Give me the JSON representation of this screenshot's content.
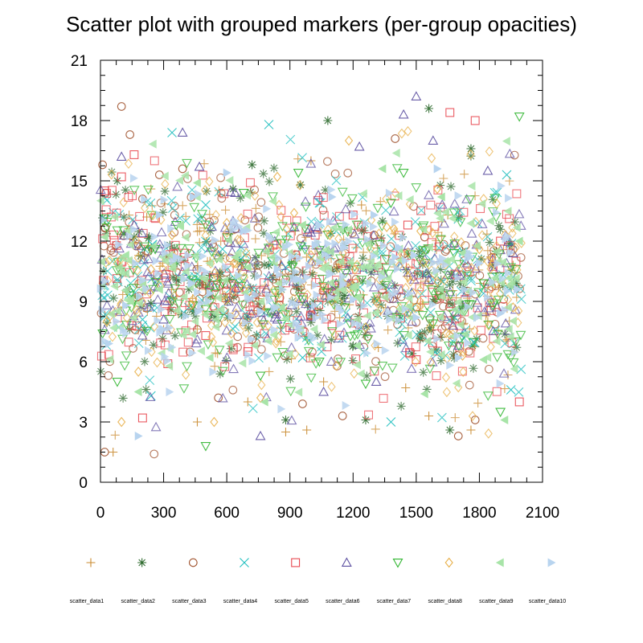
{
  "chart_data": {
    "type": "scatter",
    "title": "Scatter plot with grouped markers (per-group opacities)",
    "xlabel": "",
    "ylabel": "",
    "xlim": [
      0,
      2100
    ],
    "ylim": [
      0,
      21
    ],
    "xticks": [
      0,
      300,
      600,
      900,
      1200,
      1500,
      1800,
      2100
    ],
    "yticks": [
      0,
      3,
      6,
      9,
      12,
      15,
      18,
      21
    ],
    "grid": false,
    "legend_position": "bottom",
    "x_range_of_points": [
      0,
      2000
    ],
    "series": [
      {
        "name": "scatter_data1",
        "marker": "plus",
        "color": "#c98a2e",
        "points": [
          [
            60,
            1.5
          ],
          [
            140,
            12.1
          ],
          [
            220,
            13.2
          ],
          [
            300,
            7.6
          ],
          [
            460,
            3.0
          ],
          [
            520,
            11.0
          ],
          [
            700,
            4.0
          ],
          [
            780,
            8.6
          ],
          [
            880,
            2.5
          ],
          [
            980,
            2.6
          ],
          [
            1000,
            16.0
          ],
          [
            1060,
            5.0
          ],
          [
            1240,
            13.8
          ],
          [
            1320,
            6.7
          ],
          [
            1450,
            4.7
          ],
          [
            1560,
            3.3
          ],
          [
            1650,
            13.3
          ],
          [
            1760,
            2.6
          ],
          [
            1840,
            8.0
          ],
          [
            1960,
            10.8
          ]
        ]
      },
      {
        "name": "scatter_data2",
        "marker": "asterisk",
        "color": "#2e6a2e",
        "points": [
          [
            80,
            15.0
          ],
          [
            160,
            12.2
          ],
          [
            240,
            8.9
          ],
          [
            330,
            11.8
          ],
          [
            420,
            9.6
          ],
          [
            520,
            10.3
          ],
          [
            630,
            14.6
          ],
          [
            720,
            15.8
          ],
          [
            800,
            10.8
          ],
          [
            880,
            3.1
          ],
          [
            950,
            14.8
          ],
          [
            1080,
            18.0
          ],
          [
            1160,
            9.3
          ],
          [
            1260,
            3.1
          ],
          [
            1340,
            13.0
          ],
          [
            1480,
            6.4
          ],
          [
            1560,
            18.6
          ],
          [
            1660,
            2.6
          ],
          [
            1760,
            16.6
          ],
          [
            1880,
            11.5
          ]
        ]
      },
      {
        "name": "scatter_data3",
        "marker": "circle",
        "color": "#a0522d",
        "points": [
          [
            10,
            15.8
          ],
          [
            20,
            1.5
          ],
          [
            100,
            18.7
          ],
          [
            140,
            17.3
          ],
          [
            200,
            14.1
          ],
          [
            280,
            15.3
          ],
          [
            390,
            15.6
          ],
          [
            460,
            7.6
          ],
          [
            560,
            4.2
          ],
          [
            640,
            12.6
          ],
          [
            720,
            7.1
          ],
          [
            840,
            11.0
          ],
          [
            960,
            3.9
          ],
          [
            1100,
            9.5
          ],
          [
            1150,
            3.3
          ],
          [
            1300,
            12.3
          ],
          [
            1400,
            17.1
          ],
          [
            1540,
            12.2
          ],
          [
            1700,
            2.3
          ],
          [
            1780,
            3.1
          ]
        ]
      },
      {
        "name": "scatter_data4",
        "marker": "cross",
        "color": "#1fbfbf",
        "points": [
          [
            20,
            13.1
          ],
          [
            120,
            10.4
          ],
          [
            200,
            8.1
          ],
          [
            240,
            4.3
          ],
          [
            340,
            17.4
          ],
          [
            420,
            8.7
          ],
          [
            500,
            13.8
          ],
          [
            580,
            11.6
          ],
          [
            660,
            9.9
          ],
          [
            800,
            17.8
          ],
          [
            880,
            10.7
          ],
          [
            960,
            6.2
          ],
          [
            1040,
            13.9
          ],
          [
            1120,
            12.5
          ],
          [
            1240,
            7.7
          ],
          [
            1380,
            3.0
          ],
          [
            1460,
            9.4
          ],
          [
            1560,
            7.0
          ],
          [
            1700,
            13.1
          ],
          [
            1820,
            9.4
          ],
          [
            1930,
            15.3
          ],
          [
            1950,
            4.6
          ]
        ]
      },
      {
        "name": "scatter_data5",
        "marker": "square",
        "color": "#e8474f",
        "points": [
          [
            20,
            14.5
          ],
          [
            100,
            15.2
          ],
          [
            160,
            16.3
          ],
          [
            200,
            3.2
          ],
          [
            320,
            5.9
          ],
          [
            400,
            11.4
          ],
          [
            500,
            7.3
          ],
          [
            600,
            12.2
          ],
          [
            700,
            6.5
          ],
          [
            820,
            11.8
          ],
          [
            900,
            7.7
          ],
          [
            1020,
            12.3
          ],
          [
            1100,
            7.8
          ],
          [
            1200,
            13.3
          ],
          [
            1320,
            10.7
          ],
          [
            1460,
            12.8
          ],
          [
            1500,
            6.1
          ],
          [
            1660,
            18.4
          ],
          [
            1780,
            18.0
          ],
          [
            1900,
            12.0
          ],
          [
            1990,
            4.0
          ]
        ]
      },
      {
        "name": "scatter_data6",
        "marker": "triangle-up",
        "color": "#5b4ea0",
        "points": [
          [
            20,
            10.0
          ],
          [
            100,
            16.2
          ],
          [
            160,
            12.8
          ],
          [
            300,
            8.1
          ],
          [
            390,
            17.4
          ],
          [
            470,
            15.7
          ],
          [
            560,
            11.3
          ],
          [
            640,
            14.4
          ],
          [
            760,
            2.3
          ],
          [
            840,
            8.1
          ],
          [
            920,
            12.7
          ],
          [
            1060,
            4.5
          ],
          [
            1120,
            9.9
          ],
          [
            1230,
            16.7
          ],
          [
            1310,
            5.0
          ],
          [
            1440,
            18.3
          ],
          [
            1500,
            19.2
          ],
          [
            1580,
            17.0
          ],
          [
            1700,
            6.8
          ],
          [
            1840,
            15.5
          ],
          [
            1960,
            11.4
          ]
        ]
      },
      {
        "name": "scatter_data7",
        "marker": "triangle-down",
        "color": "#2fb52f",
        "points": [
          [
            10,
            7.4
          ],
          [
            80,
            5.0
          ],
          [
            160,
            9.1
          ],
          [
            260,
            11.6
          ],
          [
            360,
            12.8
          ],
          [
            440,
            8.8
          ],
          [
            500,
            1.8
          ],
          [
            580,
            9.9
          ],
          [
            680,
            14.4
          ],
          [
            760,
            5.3
          ],
          [
            860,
            11.9
          ],
          [
            940,
            15.4
          ],
          [
            1040,
            6.0
          ],
          [
            1160,
            8.7
          ],
          [
            1260,
            4.9
          ],
          [
            1380,
            13.9
          ],
          [
            1440,
            15.4
          ],
          [
            1580,
            7.9
          ],
          [
            1680,
            11.4
          ],
          [
            1820,
            9.9
          ],
          [
            1900,
            3.5
          ],
          [
            1990,
            18.2
          ]
        ]
      },
      {
        "name": "scatter_data8",
        "marker": "diamond",
        "color": "#e8b04a",
        "points": [
          [
            30,
            8.0
          ],
          [
            100,
            3.0
          ],
          [
            180,
            5.5
          ],
          [
            240,
            10.6
          ],
          [
            340,
            12.3
          ],
          [
            440,
            9.1
          ],
          [
            540,
            3.0
          ],
          [
            600,
            12.9
          ],
          [
            680,
            9.6
          ],
          [
            760,
            4.2
          ],
          [
            840,
            15.2
          ],
          [
            920,
            13.4
          ],
          [
            1000,
            11.3
          ],
          [
            1090,
            12.3
          ],
          [
            1180,
            17.0
          ],
          [
            1260,
            7.7
          ],
          [
            1360,
            12.7
          ],
          [
            1420,
            10.8
          ],
          [
            1520,
            12.5
          ],
          [
            1600,
            14.6
          ],
          [
            1720,
            6.3
          ],
          [
            1800,
            11.6
          ],
          [
            1880,
            9.9
          ],
          [
            1960,
            8.7
          ]
        ]
      },
      {
        "name": "scatter_data9",
        "marker": "triangle-left",
        "color": "#a8e4a8",
        "points": [
          [
            20,
            12.2
          ],
          [
            120,
            11.3
          ],
          [
            180,
            4.5
          ],
          [
            280,
            9.6
          ],
          [
            380,
            12.8
          ],
          [
            460,
            14.9
          ],
          [
            520,
            6.2
          ],
          [
            640,
            11.2
          ],
          [
            700,
            10.7
          ],
          [
            780,
            4.0
          ],
          [
            860,
            8.7
          ],
          [
            960,
            12.8
          ],
          [
            1040,
            11.0
          ],
          [
            1140,
            12.6
          ],
          [
            1220,
            6.8
          ],
          [
            1340,
            15.6
          ],
          [
            1420,
            11.6
          ],
          [
            1540,
            4.4
          ],
          [
            1620,
            14.2
          ],
          [
            1720,
            11.4
          ],
          [
            1820,
            6.1
          ],
          [
            1920,
            3.1
          ],
          [
            1990,
            12.0
          ]
        ]
      },
      {
        "name": "scatter_data10",
        "marker": "triangle-right",
        "color": "#b8d4ef",
        "points": [
          [
            40,
            6.9
          ],
          [
            120,
            8.8
          ],
          [
            180,
            2.3
          ],
          [
            280,
            13.3
          ],
          [
            360,
            11.2
          ],
          [
            440,
            14.2
          ],
          [
            520,
            9.4
          ],
          [
            600,
            15.4
          ],
          [
            680,
            12.5
          ],
          [
            760,
            8.5
          ],
          [
            840,
            10.6
          ],
          [
            940,
            10.1
          ],
          [
            1020,
            11.8
          ],
          [
            1100,
            14.2
          ],
          [
            1200,
            9.1
          ],
          [
            1300,
            13.3
          ],
          [
            1400,
            11.2
          ],
          [
            1500,
            8.2
          ],
          [
            1600,
            15.6
          ],
          [
            1700,
            6.2
          ],
          [
            1800,
            10.9
          ],
          [
            1900,
            8.4
          ],
          [
            1980,
            9.6
          ]
        ]
      }
    ]
  }
}
